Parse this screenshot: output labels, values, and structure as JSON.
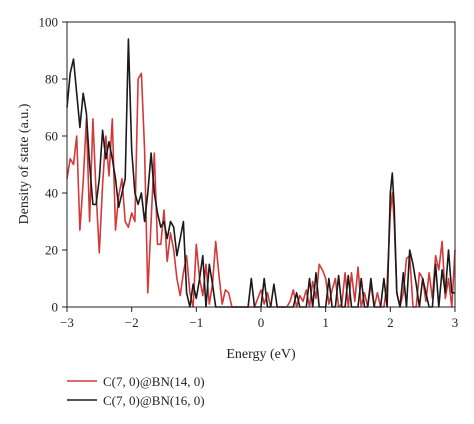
{
  "chart_data": {
    "type": "line",
    "xlabel": "Energy (eV)",
    "ylabel": "Density of state (a.u.)",
    "xlim": [
      -3,
      3
    ],
    "ylim": [
      0,
      100
    ],
    "xticks": [
      -3,
      -2,
      -1,
      0,
      1,
      2,
      3
    ],
    "xtick_labels": [
      "−3",
      "−2",
      "−1",
      "0",
      "1",
      "2",
      "3"
    ],
    "yticks": [
      0,
      20,
      40,
      60,
      80,
      100
    ],
    "ytick_labels": [
      "0",
      "20",
      "40",
      "60",
      "80",
      "100"
    ],
    "grid": false,
    "legend_position": "below-left",
    "series": [
      {
        "name": "C(7, 0)@BN(14, 0)",
        "color": "#d23a3a",
        "x": [
          -3.0,
          -2.95,
          -2.9,
          -2.85,
          -2.8,
          -2.75,
          -2.7,
          -2.65,
          -2.6,
          -2.55,
          -2.5,
          -2.45,
          -2.4,
          -2.35,
          -2.3,
          -2.25,
          -2.2,
          -2.15,
          -2.1,
          -2.05,
          -2.0,
          -1.95,
          -1.9,
          -1.85,
          -1.8,
          -1.75,
          -1.7,
          -1.65,
          -1.6,
          -1.55,
          -1.5,
          -1.45,
          -1.4,
          -1.35,
          -1.3,
          -1.25,
          -1.2,
          -1.15,
          -1.1,
          -1.05,
          -1.0,
          -0.95,
          -0.9,
          -0.85,
          -0.8,
          -0.75,
          -0.7,
          -0.65,
          -0.6,
          -0.55,
          -0.5,
          -0.45,
          -0.4,
          -0.3,
          -0.2,
          -0.1,
          0.0,
          0.05,
          0.1,
          0.15,
          0.2,
          0.3,
          0.4,
          0.45,
          0.5,
          0.55,
          0.6,
          0.65,
          0.7,
          0.75,
          0.8,
          0.85,
          0.9,
          0.95,
          1.0,
          1.05,
          1.1,
          1.15,
          1.2,
          1.25,
          1.3,
          1.35,
          1.4,
          1.45,
          1.5,
          1.55,
          1.6,
          1.65,
          1.7,
          1.75,
          1.8,
          1.85,
          1.9,
          1.95,
          2.0,
          2.03,
          2.06,
          2.1,
          2.15,
          2.2,
          2.25,
          2.3,
          2.35,
          2.4,
          2.45,
          2.5,
          2.55,
          2.6,
          2.65,
          2.7,
          2.75,
          2.8,
          2.85,
          2.9,
          2.95,
          3.0
        ],
        "y": [
          45,
          52,
          50,
          60,
          27,
          44,
          66,
          30,
          66,
          40,
          19,
          43,
          60,
          46,
          66,
          27,
          39,
          45,
          30,
          28,
          33,
          30,
          80,
          82,
          55,
          5,
          30,
          54,
          22,
          22,
          34,
          16,
          26,
          20,
          10,
          4,
          12,
          18,
          5,
          0,
          22,
          10,
          4,
          15,
          1,
          8,
          23,
          11,
          1,
          6,
          5,
          0,
          0,
          0,
          0,
          0,
          6,
          1,
          5,
          0,
          0,
          0,
          0,
          2,
          6,
          0,
          4,
          2,
          6,
          0,
          9,
          3,
          15,
          13,
          10,
          1,
          6,
          10,
          0,
          1,
          12,
          0,
          12,
          2,
          14,
          0,
          5,
          0,
          8,
          0,
          5,
          0,
          0,
          8,
          33,
          40,
          30,
          5,
          0,
          5,
          17,
          18,
          0,
          0,
          12,
          10,
          2,
          12,
          3,
          18,
          13,
          23,
          3,
          10,
          0,
          20
        ]
      },
      {
        "name": "C(7, 0)@BN(16, 0)",
        "color": "#1a1a1a",
        "x": [
          -3.0,
          -2.95,
          -2.9,
          -2.85,
          -2.8,
          -2.75,
          -2.7,
          -2.65,
          -2.6,
          -2.55,
          -2.5,
          -2.45,
          -2.4,
          -2.35,
          -2.3,
          -2.25,
          -2.2,
          -2.15,
          -2.1,
          -2.05,
          -2.0,
          -1.95,
          -1.9,
          -1.85,
          -1.8,
          -1.75,
          -1.7,
          -1.65,
          -1.6,
          -1.55,
          -1.5,
          -1.45,
          -1.4,
          -1.35,
          -1.3,
          -1.25,
          -1.2,
          -1.15,
          -1.1,
          -1.05,
          -1.0,
          -0.95,
          -0.9,
          -0.85,
          -0.8,
          -0.75,
          -0.7,
          -0.65,
          -0.6,
          -0.55,
          -0.5,
          -0.4,
          -0.3,
          -0.2,
          -0.15,
          -0.1,
          -0.05,
          0.0,
          0.05,
          0.1,
          0.15,
          0.2,
          0.25,
          0.3,
          0.35,
          0.4,
          0.45,
          0.5,
          0.55,
          0.6,
          0.65,
          0.7,
          0.75,
          0.8,
          0.85,
          0.9,
          0.95,
          1.0,
          1.05,
          1.1,
          1.15,
          1.2,
          1.25,
          1.3,
          1.35,
          1.4,
          1.45,
          1.5,
          1.55,
          1.6,
          1.65,
          1.7,
          1.75,
          1.8,
          1.85,
          1.9,
          1.95,
          2.0,
          2.03,
          2.06,
          2.1,
          2.15,
          2.2,
          2.25,
          2.3,
          2.35,
          2.4,
          2.45,
          2.5,
          2.55,
          2.6,
          2.65,
          2.7,
          2.75,
          2.8,
          2.85,
          2.9,
          2.95,
          3.0
        ],
        "y": [
          70,
          82,
          87,
          75,
          63,
          75,
          68,
          50,
          36,
          36,
          45,
          62,
          52,
          58,
          52,
          45,
          35,
          40,
          45,
          94,
          55,
          40,
          36,
          40,
          30,
          40,
          54,
          40,
          33,
          28,
          30,
          24,
          30,
          28,
          18,
          24,
          30,
          5,
          0,
          8,
          3,
          10,
          18,
          0,
          15,
          8,
          0,
          0,
          0,
          0,
          0,
          0,
          0,
          0,
          10,
          0,
          0,
          0,
          10,
          0,
          0,
          8,
          0,
          0,
          0,
          0,
          0,
          0,
          5,
          0,
          0,
          0,
          10,
          0,
          12,
          0,
          0,
          0,
          10,
          0,
          0,
          11,
          0,
          0,
          11,
          0,
          0,
          0,
          10,
          0,
          0,
          10,
          0,
          0,
          0,
          10,
          0,
          40,
          47,
          35,
          5,
          0,
          12,
          0,
          20,
          15,
          8,
          0,
          10,
          5,
          0,
          0,
          15,
          0,
          13,
          5,
          20,
          5,
          5
        ]
      }
    ]
  }
}
